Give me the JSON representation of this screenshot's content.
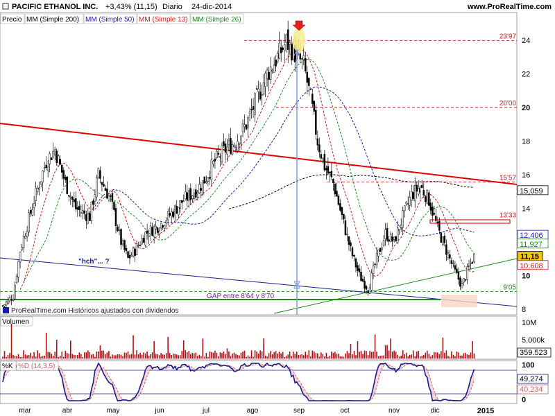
{
  "header": {
    "title": "PACIFIC ETHANOL INC.",
    "change": "+3,43% (11,15)",
    "period": "Diario",
    "date": "24-dic-2014",
    "site": "www.ProRealTime.com"
  },
  "legend": {
    "price": "Precio",
    "ma200": "MM (Simple 200)",
    "ma50": "MM (Simple 50)",
    "ma13": "MM (Simple 13)",
    "ma26": "MM (Simple 26)"
  },
  "colors": {
    "ma200": "#000000",
    "ma50": "#1a1aa8",
    "ma13": "#d01818",
    "ma26": "#1a8c1a",
    "trend_red": "#e00000",
    "support_blue": "#1a1a8c",
    "support_green": "#1a8c1a",
    "stoch_k": "#1a1a8c",
    "stoch_d": "#d06060"
  },
  "watermark": "ProRealTime.com Históricos ajustados con dividendos",
  "annotations": {
    "hch": "\"hch\"... ?",
    "gap": "GAP entre 8'64 y 8'70"
  },
  "chart_data": [
    {
      "type": "candlestick",
      "name": "Precio",
      "ylim": [
        8,
        25
      ],
      "x_months": [
        "mar",
        "abr",
        "may",
        "jun",
        "jul",
        "ago",
        "sep",
        "oct",
        "nov",
        "dic",
        "2015"
      ],
      "y_ticks": [
        8,
        10,
        12,
        14,
        16,
        18,
        20,
        22,
        24
      ],
      "y_tick_labels": [
        "8",
        "10",
        "12",
        "14",
        "16",
        "18",
        "20",
        "22",
        "24"
      ],
      "level_labels": [
        "23'97",
        "20'00",
        "15'57",
        "13'33",
        "9'05"
      ],
      "level_values": [
        23.97,
        20.0,
        15.57,
        13.33,
        9.05
      ],
      "last_values": {
        "ma200": 15.059,
        "ma200_label": "15,059",
        "ma50": 12.406,
        "ma50_label": "12,406",
        "ma26": 11.927,
        "ma26_label": "11,927",
        "price": 11.15,
        "price_label": "11,15",
        "ma13": 10.608,
        "ma13_label": "10,608"
      },
      "close_path": [
        [
          0,
          8.2
        ],
        [
          6,
          8.8
        ],
        [
          10,
          11.5
        ],
        [
          18,
          14.5
        ],
        [
          25,
          16.8
        ],
        [
          30,
          17.5
        ],
        [
          36,
          15.5
        ],
        [
          42,
          14.0
        ],
        [
          50,
          13.5
        ],
        [
          55,
          16.0
        ],
        [
          62,
          14.5
        ],
        [
          68,
          12.0
        ],
        [
          72,
          11.0
        ],
        [
          76,
          11.5
        ],
        [
          82,
          12.5
        ],
        [
          90,
          13.0
        ],
        [
          98,
          13.8
        ],
        [
          104,
          14.5
        ],
        [
          108,
          14.8
        ],
        [
          115,
          15.5
        ],
        [
          122,
          16.8
        ],
        [
          128,
          17.5
        ],
        [
          134,
          18.0
        ],
        [
          140,
          19.0
        ],
        [
          146,
          20.5
        ],
        [
          152,
          22.0
        ],
        [
          158,
          23.0
        ],
        [
          163,
          23.9
        ],
        [
          168,
          23.2
        ],
        [
          173,
          22.5
        ],
        [
          177,
          20.5
        ],
        [
          181,
          18.0
        ],
        [
          185,
          16.5
        ],
        [
          190,
          15.5
        ],
        [
          195,
          13.5
        ],
        [
          200,
          11.5
        ],
        [
          205,
          10.0
        ],
        [
          210,
          9.2
        ],
        [
          215,
          11.0
        ],
        [
          220,
          12.5
        ],
        [
          225,
          12.0
        ],
        [
          230,
          13.5
        ],
        [
          235,
          14.8
        ],
        [
          240,
          15.3
        ],
        [
          245,
          14.5
        ],
        [
          250,
          12.8
        ],
        [
          255,
          11.5
        ],
        [
          260,
          10.2
        ],
        [
          264,
          9.4
        ],
        [
          268,
          10.5
        ],
        [
          271,
          11.15
        ]
      ]
    },
    {
      "type": "bar",
      "name": "Volumen",
      "y_tick_labels": [
        "10M",
        "5.000k"
      ],
      "last_value_label": "359.523"
    },
    {
      "type": "line",
      "name": "%K",
      "series_labels": [
        "%K",
        "%D (14,3,5)"
      ],
      "ylim": [
        0,
        100
      ],
      "y_tick_labels": [
        "100",
        "0"
      ],
      "last_values": {
        "k": 49.274,
        "k_label": "49,274",
        "d": 40.234,
        "d_label": "40,234"
      }
    }
  ]
}
